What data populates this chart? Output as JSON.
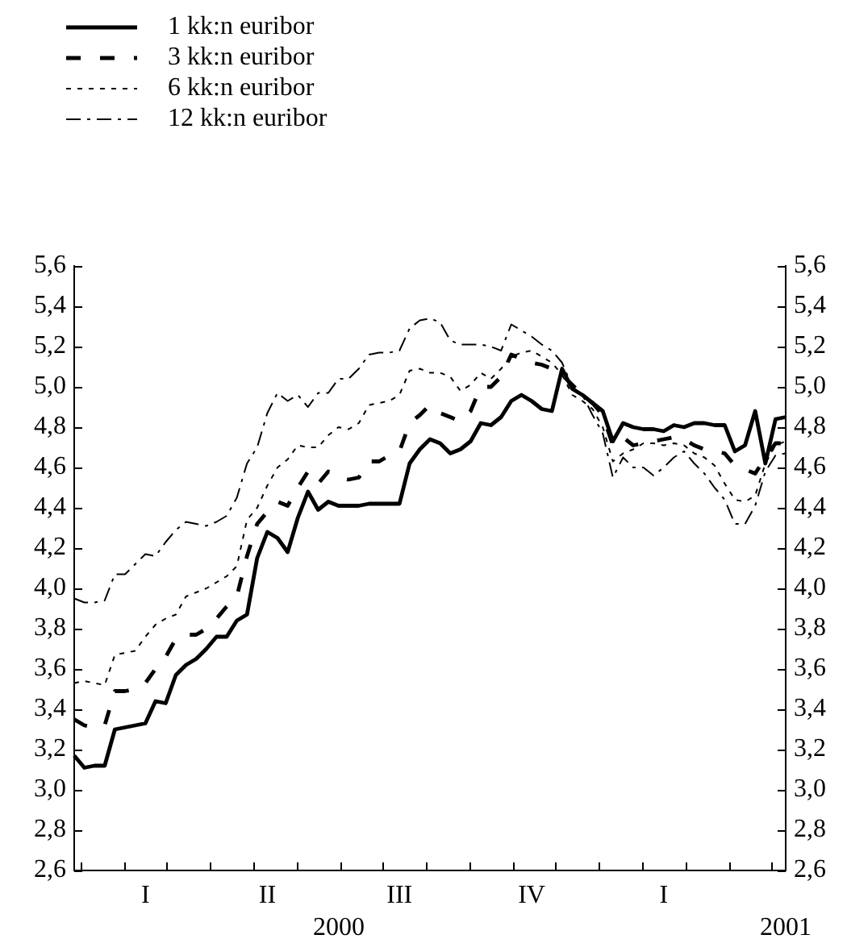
{
  "chart_data": {
    "type": "line",
    "legend": "top left",
    "grid": false,
    "categories": [
      null,
      null,
      null,
      null,
      null,
      null,
      null,
      "I",
      null,
      null,
      null,
      null,
      null,
      null,
      null,
      null,
      null,
      null,
      null,
      "II",
      null,
      null,
      null,
      null,
      null,
      null,
      null,
      null,
      null,
      null,
      null,
      null,
      "III",
      null,
      null,
      null,
      null,
      null,
      null,
      null,
      null,
      null,
      null,
      null,
      null,
      "IV",
      null,
      null,
      null,
      null,
      null,
      null,
      null,
      null,
      null,
      null,
      null,
      null,
      "I",
      null,
      null,
      null,
      null,
      null,
      null,
      null,
      null,
      null,
      null,
      null,
      null
    ],
    "ylim": [
      2.6,
      5.6
    ],
    "yticks": [
      {
        "value": 2.6,
        "label": "2,6"
      },
      {
        "value": 2.8,
        "label": "2,8"
      },
      {
        "value": 3.0,
        "label": "3,0"
      },
      {
        "value": 3.2,
        "label": "3,2"
      },
      {
        "value": 3.4,
        "label": "3,4"
      },
      {
        "value": 3.6,
        "label": "3,6"
      },
      {
        "value": 3.8,
        "label": "3,8"
      },
      {
        "value": 4.0,
        "label": "4,0"
      },
      {
        "value": 4.2,
        "label": "4,2"
      },
      {
        "value": 4.4,
        "label": "4,4"
      },
      {
        "value": 4.6,
        "label": "4,6"
      },
      {
        "value": 4.8,
        "label": "4,8"
      },
      {
        "value": 5.0,
        "label": "5,0"
      },
      {
        "value": 5.2,
        "label": "5,2"
      },
      {
        "value": 5.4,
        "label": "5,4"
      },
      {
        "value": 5.6,
        "label": "5,6"
      }
    ],
    "y2lim": [
      2.6,
      5.6
    ],
    "y2ticks": [
      {
        "value": 2.6,
        "label": "2,6"
      },
      {
        "value": 2.8,
        "label": "2,8"
      },
      {
        "value": 3.0,
        "label": "3,0"
      },
      {
        "value": 3.2,
        "label": "3,2"
      },
      {
        "value": 3.4,
        "label": "3,4"
      },
      {
        "value": 3.6,
        "label": "3,6"
      },
      {
        "value": 3.8,
        "label": "3,8"
      },
      {
        "value": 4.0,
        "label": "4,0"
      },
      {
        "value": 4.2,
        "label": "4,2"
      },
      {
        "value": 4.4,
        "label": "4,4"
      },
      {
        "value": 4.6,
        "label": "4,6"
      },
      {
        "value": 4.8,
        "label": "4,8"
      },
      {
        "value": 5.0,
        "label": "5,0"
      },
      {
        "value": 5.2,
        "label": "5,2"
      },
      {
        "value": 5.4,
        "label": "5,4"
      },
      {
        "value": 5.6,
        "label": "5,6"
      }
    ],
    "annotations": [
      "2000",
      "2001"
    ],
    "series": [
      {
        "name": "1 kk:n euribor",
        "color": "#000000",
        "line_style": "solid",
        "values": [
          3.17,
          3.11,
          3.12,
          3.12,
          3.3,
          3.31,
          3.32,
          3.33,
          3.44,
          3.43,
          3.57,
          3.62,
          3.65,
          3.7,
          3.76,
          3.76,
          3.84,
          3.87,
          4.15,
          4.28,
          4.25,
          4.18,
          4.35,
          4.48,
          4.39,
          4.43,
          4.41,
          4.41,
          4.41,
          4.42,
          4.42,
          4.42,
          4.42,
          4.62,
          4.69,
          4.74,
          4.72,
          4.67,
          4.69,
          4.73,
          4.82,
          4.81,
          4.85,
          4.93,
          4.96,
          4.93,
          4.89,
          4.88,
          5.09,
          4.99,
          4.96,
          4.92,
          4.88,
          4.73,
          4.82,
          4.8,
          4.79,
          4.79,
          4.78,
          4.81,
          4.8,
          4.82,
          4.82,
          4.81,
          4.81,
          4.68,
          4.71,
          4.88,
          4.62,
          4.84,
          4.85
        ]
      },
      {
        "name": "3 kk:n euribor",
        "color": "#000000",
        "line_style": "dashed",
        "values": [
          3.35,
          3.32,
          3.31,
          3.32,
          3.49,
          3.49,
          3.5,
          3.53,
          3.6,
          3.66,
          3.75,
          3.77,
          3.77,
          3.8,
          3.85,
          3.91,
          3.96,
          4.16,
          4.32,
          4.38,
          4.43,
          4.41,
          4.5,
          4.58,
          4.52,
          4.58,
          4.55,
          4.54,
          4.55,
          4.63,
          4.63,
          4.66,
          4.68,
          4.82,
          4.86,
          4.91,
          4.87,
          4.85,
          4.83,
          4.88,
          5.0,
          5.0,
          5.05,
          5.16,
          5.14,
          5.12,
          5.11,
          5.09,
          5.06,
          5.01,
          4.96,
          4.92,
          4.86,
          4.71,
          4.75,
          4.71,
          4.72,
          4.73,
          4.74,
          4.75,
          4.74,
          4.71,
          4.69,
          4.68,
          4.67,
          4.61,
          4.59,
          4.57,
          4.65,
          4.72,
          4.72
        ]
      },
      {
        "name": "6 kk:n euribor",
        "color": "#000000",
        "line_style": "dotted",
        "values": [
          3.53,
          3.54,
          3.53,
          3.52,
          3.67,
          3.68,
          3.69,
          3.76,
          3.82,
          3.85,
          3.87,
          3.96,
          3.98,
          4.0,
          4.03,
          4.06,
          4.11,
          4.34,
          4.4,
          4.51,
          4.6,
          4.64,
          4.71,
          4.7,
          4.7,
          4.76,
          4.8,
          4.79,
          4.82,
          4.91,
          4.92,
          4.93,
          4.96,
          5.08,
          5.09,
          5.07,
          5.07,
          5.05,
          4.98,
          5.01,
          5.07,
          5.04,
          5.09,
          5.15,
          5.17,
          5.18,
          5.15,
          5.12,
          5.06,
          4.96,
          4.93,
          4.89,
          4.8,
          4.63,
          4.67,
          4.69,
          4.72,
          4.72,
          4.71,
          4.72,
          4.71,
          4.67,
          4.65,
          4.61,
          4.52,
          4.44,
          4.43,
          4.46,
          4.62,
          4.71,
          4.73
        ]
      },
      {
        "name": "12 kk:n euribor",
        "color": "#000000",
        "line_style": "dashdot",
        "values": [
          3.95,
          3.93,
          3.93,
          3.94,
          4.07,
          4.07,
          4.12,
          4.17,
          4.16,
          4.23,
          4.29,
          4.33,
          4.32,
          4.31,
          4.33,
          4.36,
          4.45,
          4.62,
          4.7,
          4.87,
          4.97,
          4.93,
          4.96,
          4.9,
          4.97,
          4.97,
          5.04,
          5.04,
          5.09,
          5.16,
          5.17,
          5.17,
          5.18,
          5.29,
          5.33,
          5.34,
          5.32,
          5.23,
          5.21,
          5.21,
          5.21,
          5.2,
          5.18,
          5.31,
          5.28,
          5.25,
          5.21,
          5.18,
          5.12,
          5.0,
          4.96,
          4.86,
          4.77,
          4.55,
          4.65,
          4.6,
          4.6,
          4.56,
          4.6,
          4.65,
          4.68,
          4.62,
          4.57,
          4.5,
          4.44,
          4.32,
          4.32,
          4.41,
          4.58,
          4.66,
          4.67
        ]
      }
    ]
  }
}
